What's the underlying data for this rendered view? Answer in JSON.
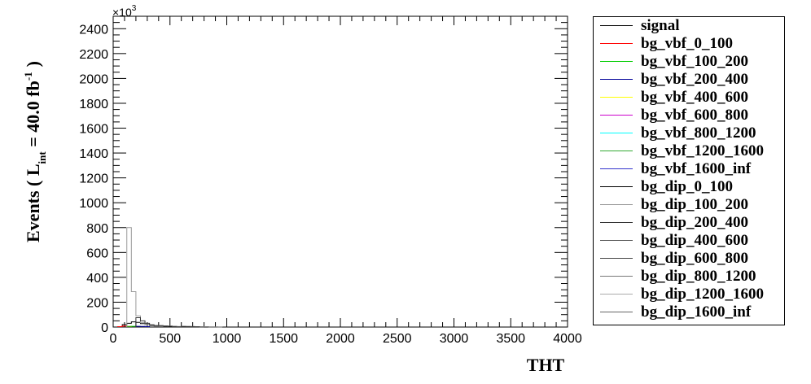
{
  "chart_data": {
    "type": "histogram",
    "xlabel": "THT",
    "ylabel_main": "Events  ( L",
    "ylabel_sub": "int",
    "ylabel_value": " = 40.0 fb",
    "ylabel_sup": "-1",
    "ylabel_close": ")",
    "y_exponent_base": "×10",
    "y_exponent": "3",
    "xlim": [
      0,
      4000
    ],
    "ylim": [
      0,
      2500
    ],
    "x_ticks": [
      0,
      500,
      1000,
      1500,
      2000,
      2500,
      3000,
      3500,
      4000
    ],
    "y_ticks": [
      0,
      200,
      400,
      600,
      800,
      1000,
      1200,
      1400,
      1600,
      1800,
      2000,
      2200,
      2400
    ],
    "bin_width": 40,
    "series": [
      {
        "name": "signal",
        "color": "#000000",
        "bins": [
          [
            0,
            0
          ],
          [
            40,
            2
          ],
          [
            80,
            20
          ],
          [
            120,
            30
          ],
          [
            160,
            42
          ],
          [
            200,
            38
          ],
          [
            240,
            28
          ],
          [
            280,
            20
          ],
          [
            320,
            14
          ],
          [
            360,
            10
          ],
          [
            400,
            7
          ],
          [
            440,
            5
          ],
          [
            480,
            4
          ],
          [
            520,
            3
          ],
          [
            560,
            2
          ],
          [
            600,
            1.5
          ],
          [
            640,
            1
          ]
        ]
      },
      {
        "name": "bg_vbf_0_100",
        "color": "#ff0000",
        "bins": [
          [
            40,
            3
          ],
          [
            80,
            8
          ],
          [
            120,
            4
          ]
        ]
      },
      {
        "name": "bg_vbf_100_200",
        "color": "#00cc00",
        "bins": [
          [
            120,
            5
          ],
          [
            160,
            6
          ]
        ]
      },
      {
        "name": "bg_vbf_200_400",
        "color": "#000099",
        "bins": [
          [
            200,
            6
          ],
          [
            240,
            5
          ],
          [
            280,
            3
          ]
        ]
      },
      {
        "name": "bg_vbf_400_600",
        "color": "#ffff00",
        "bins": []
      },
      {
        "name": "bg_vbf_600_800",
        "color": "#cc00cc",
        "bins": []
      },
      {
        "name": "bg_vbf_800_1200",
        "color": "#00ffff",
        "bins": []
      },
      {
        "name": "bg_vbf_1200_1600",
        "color": "#33aa33",
        "bins": []
      },
      {
        "name": "bg_vbf_1600_inf",
        "color": "#3333cc",
        "bins": []
      },
      {
        "name": "bg_dip_0_100",
        "color": "#000000",
        "bins": []
      },
      {
        "name": "bg_dip_100_200",
        "color": "#999999",
        "bins": [
          [
            120,
            800
          ],
          [
            160,
            285
          ],
          [
            200,
            90
          ],
          [
            240,
            35
          ],
          [
            280,
            18
          ],
          [
            320,
            10
          ],
          [
            360,
            6
          ],
          [
            400,
            4
          ]
        ]
      },
      {
        "name": "bg_dip_200_400",
        "color": "#333333",
        "bins": [
          [
            200,
            75
          ],
          [
            240,
            50
          ],
          [
            280,
            30
          ],
          [
            320,
            18
          ],
          [
            360,
            12
          ],
          [
            400,
            8
          ],
          [
            440,
            5
          ]
        ]
      },
      {
        "name": "bg_dip_400_600",
        "color": "#555555",
        "bins": [
          [
            400,
            12
          ],
          [
            440,
            10
          ],
          [
            480,
            8
          ],
          [
            520,
            6
          ],
          [
            560,
            4
          ]
        ]
      },
      {
        "name": "bg_dip_600_800",
        "color": "#444444",
        "bins": [
          [
            600,
            6
          ],
          [
            640,
            5
          ],
          [
            680,
            4
          ],
          [
            720,
            3
          ],
          [
            760,
            2
          ]
        ]
      },
      {
        "name": "bg_dip_800_1200",
        "color": "#777777",
        "bins": [
          [
            800,
            3
          ],
          [
            840,
            2
          ],
          [
            880,
            2
          ],
          [
            920,
            1
          ]
        ]
      },
      {
        "name": "bg_dip_1200_1600",
        "color": "#aaaaaa",
        "bins": []
      },
      {
        "name": "bg_dip_1600_inf",
        "color": "#666666",
        "bins": []
      }
    ]
  }
}
